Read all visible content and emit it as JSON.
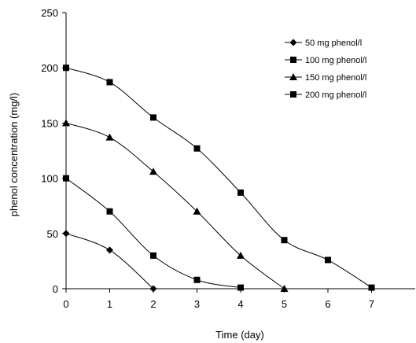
{
  "chart_data": {
    "type": "line",
    "title": "",
    "xlabel": "Time (day)",
    "ylabel": "phenol concentration (mg/l)",
    "xlim": [
      0,
      8
    ],
    "ylim": [
      0,
      250
    ],
    "x_ticks": [
      0,
      1,
      2,
      3,
      4,
      5,
      6,
      7
    ],
    "y_ticks": [
      0,
      50,
      100,
      150,
      200,
      250
    ],
    "grid": false,
    "legend_position": "top-right",
    "line_color": "#000000",
    "series": [
      {
        "name": "50 mg phenol/l",
        "marker": "diamond",
        "x": [
          0,
          1,
          2
        ],
        "y": [
          50,
          35,
          0
        ]
      },
      {
        "name": "100 mg phenol/l",
        "marker": "square",
        "x": [
          0,
          1,
          2,
          3,
          4
        ],
        "y": [
          100,
          70,
          30,
          8,
          1
        ]
      },
      {
        "name": "150 mg phenol/l",
        "marker": "triangle",
        "x": [
          0,
          1,
          2,
          3,
          4,
          5
        ],
        "y": [
          150,
          137,
          106,
          70,
          30,
          0
        ]
      },
      {
        "name": "200 mg phenol/l",
        "marker": "square",
        "x": [
          0,
          1,
          2,
          3,
          4,
          5,
          6,
          7
        ],
        "y": [
          200,
          187,
          155,
          127,
          87,
          44,
          26,
          1
        ]
      }
    ]
  }
}
